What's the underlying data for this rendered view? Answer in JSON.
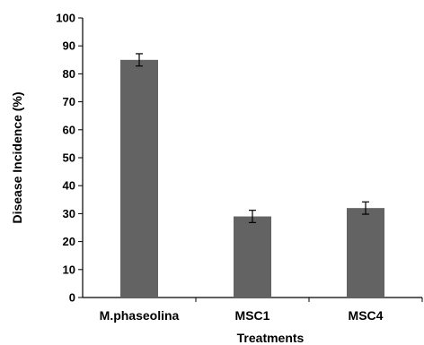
{
  "chart_data": {
    "type": "bar",
    "categories": [
      "M.phaseolina",
      "MSC1",
      "MSC4"
    ],
    "values": [
      85,
      29,
      32
    ],
    "errors": [
      2.2,
      2.2,
      2.2
    ],
    "xlabel": "Treatments",
    "ylabel": "Disease Incidence (%)",
    "ylim": [
      0,
      100
    ],
    "yticks": [
      0,
      10,
      20,
      30,
      40,
      50,
      60,
      70,
      80,
      90,
      100
    ],
    "grid": false,
    "bar_color": "#636363"
  }
}
